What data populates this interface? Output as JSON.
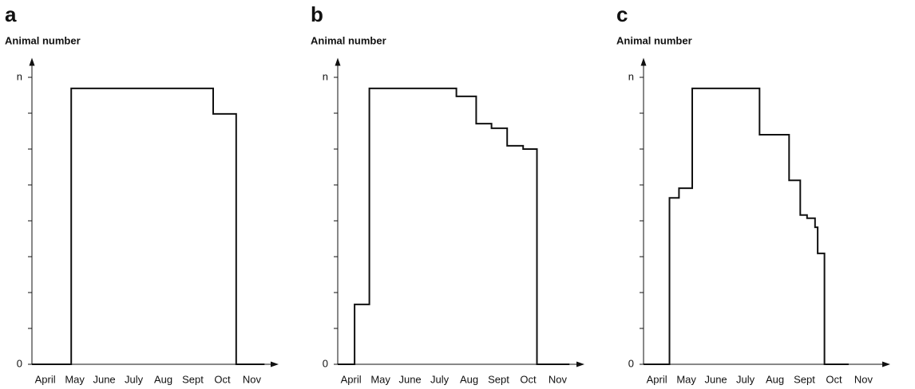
{
  "chart_data": [
    {
      "type": "line",
      "title": "a",
      "ylabel": "Animal number",
      "color": "#111111",
      "x": [
        -0.45,
        0.88,
        0.88,
        5.69,
        5.69,
        6.47,
        6.47,
        7.43
      ],
      "values": [
        0,
        0,
        7.69,
        7.69,
        6.98,
        6.98,
        0,
        0
      ],
      "xlim": [
        -0.45,
        7.8
      ],
      "xticks": [
        {
          "value": 0,
          "label": "April"
        },
        {
          "value": 1,
          "label": "May"
        },
        {
          "value": 2,
          "label": "June"
        },
        {
          "value": 3,
          "label": "July"
        },
        {
          "value": 4,
          "label": "Aug"
        },
        {
          "value": 5,
          "label": "Sept"
        },
        {
          "value": 6,
          "label": "Oct"
        },
        {
          "value": 7,
          "label": "Nov"
        }
      ],
      "ylim": [
        0,
        8.5
      ],
      "yticks": [
        0,
        {
          "value": 8,
          "label": "n"
        }
      ],
      "minor_yticks": [
        1,
        2,
        3,
        4,
        5,
        6,
        7
      ]
    },
    {
      "type": "line",
      "title": "b",
      "ylabel": "Animal number",
      "color": "#111111",
      "x": [
        -0.45,
        0.12,
        0.12,
        0.62,
        0.62,
        3.57,
        3.57,
        4.24,
        4.24,
        4.76,
        4.76,
        5.29,
        5.29,
        5.83,
        5.83,
        6.3,
        6.3,
        7.4
      ],
      "values": [
        0,
        0,
        1.67,
        1.67,
        7.69,
        7.69,
        7.47,
        7.47,
        6.71,
        6.71,
        6.58,
        6.58,
        6.09,
        6.09,
        6.0,
        6.0,
        0,
        0
      ],
      "xlim": [
        -0.45,
        7.8
      ],
      "xticks": [
        {
          "value": 0,
          "label": "April"
        },
        {
          "value": 1,
          "label": "May"
        },
        {
          "value": 2,
          "label": "June"
        },
        {
          "value": 3,
          "label": "July"
        },
        {
          "value": 4,
          "label": "Aug"
        },
        {
          "value": 5,
          "label": "Sept"
        },
        {
          "value": 6,
          "label": "Oct"
        },
        {
          "value": 7,
          "label": "Nov"
        }
      ],
      "ylim": [
        0,
        8.5
      ],
      "yticks": [
        0,
        {
          "value": 8,
          "label": "n"
        }
      ],
      "minor_yticks": [
        1,
        2,
        3,
        4,
        5,
        6,
        7
      ]
    },
    {
      "type": "line",
      "title": "c",
      "ylabel": "Animal number",
      "color": "#111111",
      "x": [
        -0.45,
        0.43,
        0.43,
        0.75,
        0.75,
        1.2,
        1.2,
        3.48,
        3.48,
        4.48,
        4.48,
        4.86,
        4.86,
        5.09,
        5.09,
        5.36,
        5.36,
        5.45,
        5.45,
        5.68,
        5.68,
        6.5
      ],
      "values": [
        0,
        0,
        4.64,
        4.64,
        4.91,
        4.91,
        7.69,
        7.69,
        6.4,
        6.4,
        5.13,
        5.13,
        4.16,
        4.16,
        4.07,
        4.07,
        3.82,
        3.82,
        3.09,
        3.09,
        0,
        0
      ],
      "xlim": [
        -0.45,
        7.8
      ],
      "xticks": [
        {
          "value": 0,
          "label": "April"
        },
        {
          "value": 1,
          "label": "May"
        },
        {
          "value": 2,
          "label": "June"
        },
        {
          "value": 3,
          "label": "July"
        },
        {
          "value": 4,
          "label": "Aug"
        },
        {
          "value": 5,
          "label": "Sept"
        },
        {
          "value": 6,
          "label": "Oct"
        },
        {
          "value": 7,
          "label": "Nov"
        }
      ],
      "ylim": [
        0,
        8.5
      ],
      "yticks": [
        0,
        {
          "value": 8,
          "label": "n"
        }
      ],
      "minor_yticks": [
        1,
        2,
        3,
        4,
        5,
        6,
        7
      ]
    }
  ]
}
